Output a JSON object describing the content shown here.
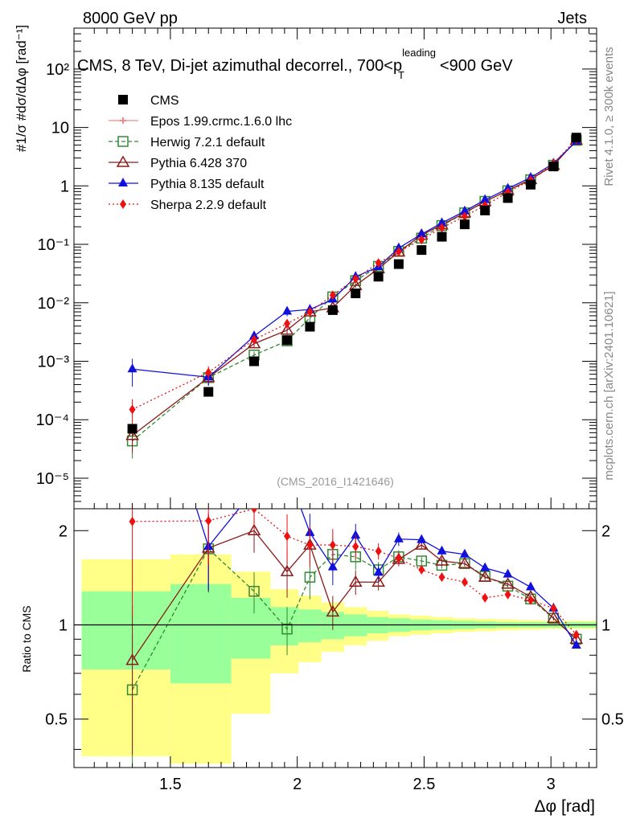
{
  "header": {
    "left": "8000 GeV pp",
    "right": "Jets"
  },
  "title": {
    "main": "CMS, 8 TeV, Di-jet azimuthal decorrel., 700<p",
    "sup": "leading",
    "sub": "T",
    "tail": "<900 GeV"
  },
  "side_labels": {
    "rivet": "Rivet 4.1.0, ≥ 300k events",
    "mcplots": "mcplots.cern.ch [arXiv:2401.10621]"
  },
  "analysis_tag": "(CMS_2016_I1421646)",
  "axes": {
    "xlabel": "Δφ [rad]",
    "ylabel_ratio": "Ratio to CMS",
    "ylabel_main": "#1/σ #dσ/dΔφ [rad⁻¹]",
    "x_ticks": [
      "1.5",
      "2",
      "2.5",
      "3"
    ],
    "y_ticks_main": [
      "10⁻⁵",
      "10⁻⁴",
      "10⁻³",
      "10⁻²",
      "10⁻¹",
      "1",
      "10",
      "10²"
    ],
    "y_ticks_ratio": [
      "0.5",
      "1",
      "2"
    ]
  },
  "chart_data": {
    "type": "line",
    "title": "CMS, 8 TeV, Di-jet azimuthal decorrel., 700<pT leading<900 GeV",
    "xlabel": "Δφ [rad]",
    "ylabel": "1/σ dσ/dΔφ [rad^-1]",
    "xlim": [
      1.12,
      3.18
    ],
    "ylim": [
      3e-06,
      500
    ],
    "yscale": "log",
    "ratio_ylim": [
      0.35,
      2.35
    ],
    "x": [
      1.35,
      1.65,
      1.83,
      1.96,
      2.05,
      2.14,
      2.23,
      2.32,
      2.4,
      2.49,
      2.57,
      2.66,
      2.74,
      2.83,
      2.92,
      3.01,
      3.1
    ],
    "data": {
      "name": "CMS",
      "values": [
        7e-05,
        0.0003,
        0.001,
        0.0023,
        0.0039,
        0.0075,
        0.0145,
        0.028,
        0.046,
        0.08,
        0.135,
        0.22,
        0.38,
        0.62,
        1.05,
        2.15,
        6.7
      ]
    },
    "series": [
      {
        "name": "Epos 1.99.crmc.1.6.0 lhc",
        "ratio": [],
        "color": "#f08a8a"
      },
      {
        "name": "Herwig 7.2.1 default",
        "ratio": [
          0.62,
          1.75,
          1.28,
          0.97,
          1.42,
          1.68,
          1.65,
          1.5,
          1.65,
          1.6,
          1.55,
          1.57,
          1.43,
          1.33,
          1.21,
          1.05,
          0.9
        ],
        "color": "#338833"
      },
      {
        "name": "Pythia 6.428 370",
        "ratio": [
          0.77,
          1.76,
          2.0,
          1.48,
          1.8,
          1.1,
          1.37,
          1.37,
          1.62,
          1.8,
          1.6,
          1.57,
          1.42,
          1.35,
          1.23,
          1.05,
          0.9
        ],
        "color": "#8b1a1a"
      },
      {
        "name": "Pythia 8.135 default",
        "ratio": [
          10.5,
          1.78,
          2.7,
          3.1,
          1.97,
          1.53,
          1.93,
          1.47,
          1.88,
          1.87,
          1.72,
          1.68,
          1.52,
          1.45,
          1.32,
          1.13,
          0.86
        ],
        "color": "#1111dd"
      },
      {
        "name": "Sherpa 2.2.9 default",
        "ratio": [
          2.14,
          2.15,
          2.35,
          1.92,
          1.8,
          1.8,
          1.78,
          1.72,
          1.63,
          1.5,
          1.42,
          1.37,
          1.22,
          1.25,
          1.2,
          1.13,
          0.93
        ],
        "color": "#ee1111"
      }
    ],
    "legend": [
      "CMS",
      "Epos 1.99.crmc.1.6.0 lhc",
      "Herwig 7.2.1 default",
      "Pythia 6.428 370",
      "Pythia 8.135 default",
      "Sherpa 2.2.9 default"
    ],
    "legend_position": "top-left"
  }
}
